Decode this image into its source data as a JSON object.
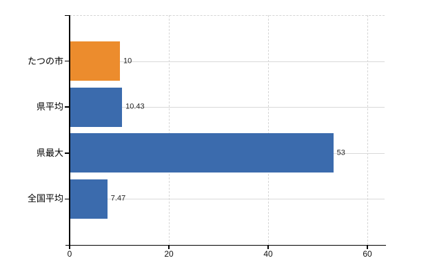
{
  "chart_data": {
    "type": "bar",
    "orientation": "horizontal",
    "categories": [
      "たつの市",
      "県平均",
      "県最大",
      "全国平均"
    ],
    "values": [
      10,
      10.43,
      53,
      7.47
    ],
    "value_labels": [
      "10",
      "10.43",
      "53",
      "7.47"
    ],
    "bar_colors": [
      "#EC8C2D",
      "#3B6BAD",
      "#3B6BAD",
      "#3B6BAD"
    ],
    "highlight_color": "#EC8C2D",
    "series_color": "#3B6BAD",
    "x_ticks": [
      0,
      20,
      40,
      60
    ],
    "x_tick_labels": [
      "0",
      "20",
      "40",
      "60"
    ],
    "xlim": [
      0,
      63.5
    ],
    "grid": "light-gray; vertical dashed at x ticks, horizontal solid at category centers, dashed plot top border",
    "legend_position": "none",
    "title": "",
    "xlabel": "",
    "ylabel": ""
  }
}
